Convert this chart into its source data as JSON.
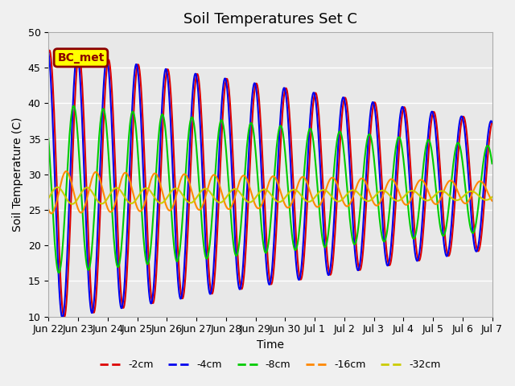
{
  "title": "Soil Temperatures Set C",
  "xlabel": "Time",
  "ylabel": "Soil Temperature (C)",
  "ylim": [
    10,
    50
  ],
  "background_color": "#e8e8e8",
  "fig_color": "#f0f0f0",
  "annotation_text": "BC_met",
  "annotation_bg": "#ffff00",
  "annotation_border": "#8b0000",
  "lines": {
    "-2cm": {
      "color": "#dd0000",
      "lw": 1.5
    },
    "-4cm": {
      "color": "#0000ee",
      "lw": 1.5
    },
    "-8cm": {
      "color": "#00cc00",
      "lw": 1.5
    },
    "-16cm": {
      "color": "#ff8800",
      "lw": 1.5
    },
    "-32cm": {
      "color": "#cccc00",
      "lw": 1.5
    }
  },
  "xtick_labels": [
    "Jun 22",
    "Jun 23",
    "Jun 24",
    "Jun 25",
    "Jun 26",
    "Jun 27",
    "Jun 28",
    "Jun 29",
    "Jun 30",
    "Jul 1",
    "Jul 2",
    "Jul 3",
    "Jul 4",
    "Jul 5",
    "Jul 6",
    "Jul 7"
  ],
  "n_days": 15,
  "title_fontsize": 13,
  "axis_fontsize": 10,
  "tick_fontsize": 9
}
